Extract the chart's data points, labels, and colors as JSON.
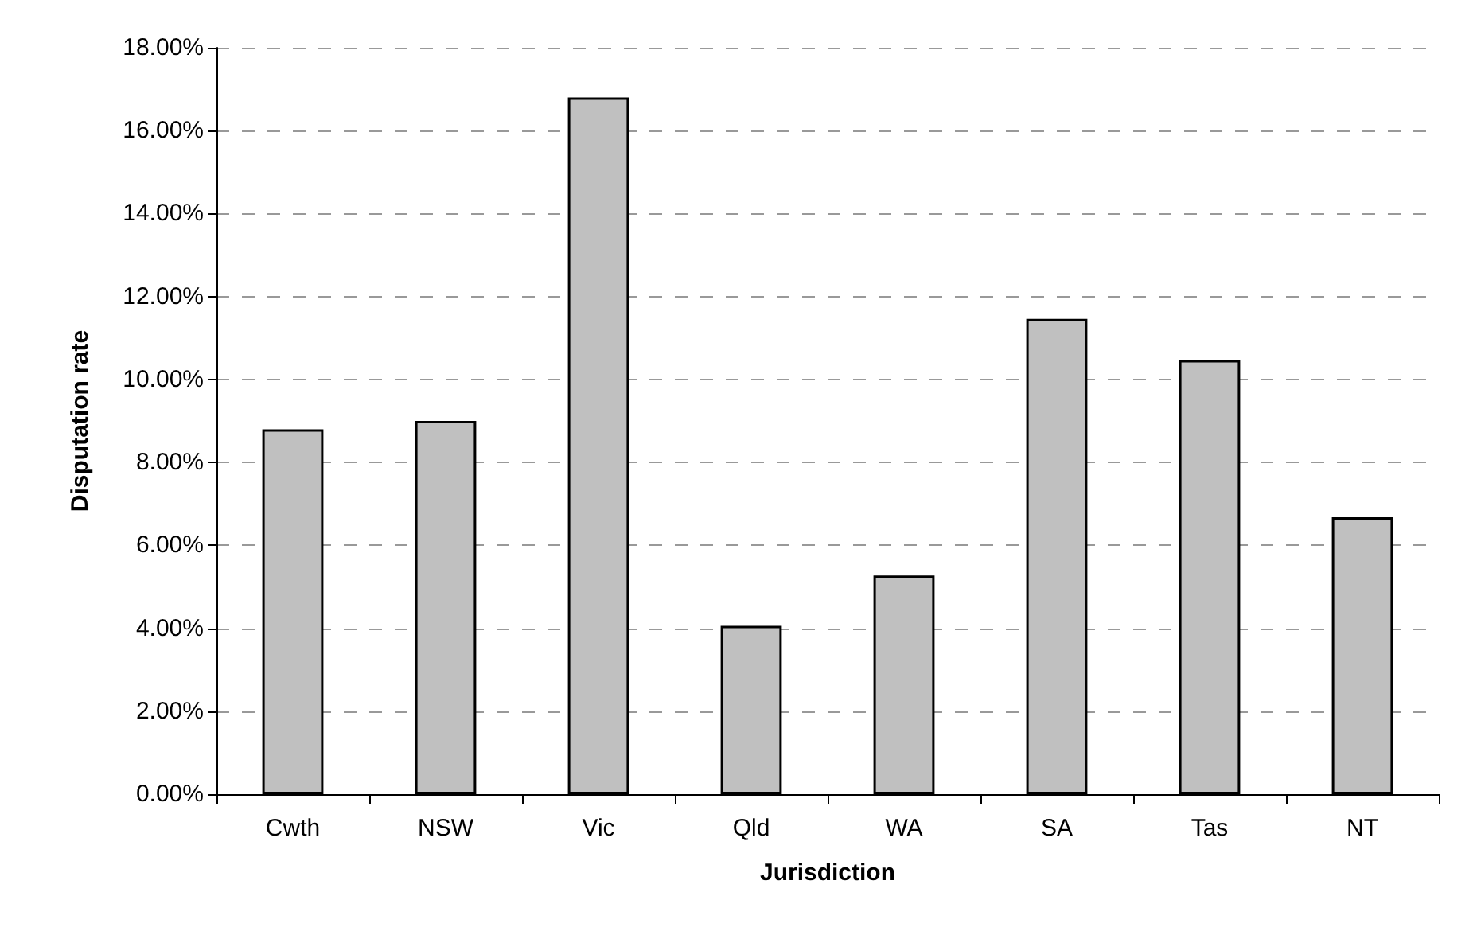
{
  "chart_data": {
    "type": "bar",
    "xlabel": "Jurisdiction",
    "ylabel": "Disputation rate",
    "categories": [
      "Cwth",
      "NSW",
      "Vic",
      "Qld",
      "WA",
      "SA",
      "Tas",
      "NT"
    ],
    "values": [
      8.8,
      9.0,
      16.8,
      4.06,
      5.27,
      11.46,
      10.47,
      6.68
    ],
    "color": "#c0c0c0",
    "ylim": [
      0,
      18
    ],
    "yticks": [
      {
        "value": 0,
        "label": "0.00%"
      },
      {
        "value": 2,
        "label": "2.00%"
      },
      {
        "value": 4,
        "label": "4.00%"
      },
      {
        "value": 6,
        "label": "6.00%"
      },
      {
        "value": 8,
        "label": "8.00%"
      },
      {
        "value": 10,
        "label": "10.00%"
      },
      {
        "value": 12,
        "label": "12.00%"
      },
      {
        "value": 14,
        "label": "14.00%"
      },
      {
        "value": 16,
        "label": "16.00%"
      },
      {
        "value": 18,
        "label": "18.00%"
      }
    ],
    "grid": "y"
  }
}
